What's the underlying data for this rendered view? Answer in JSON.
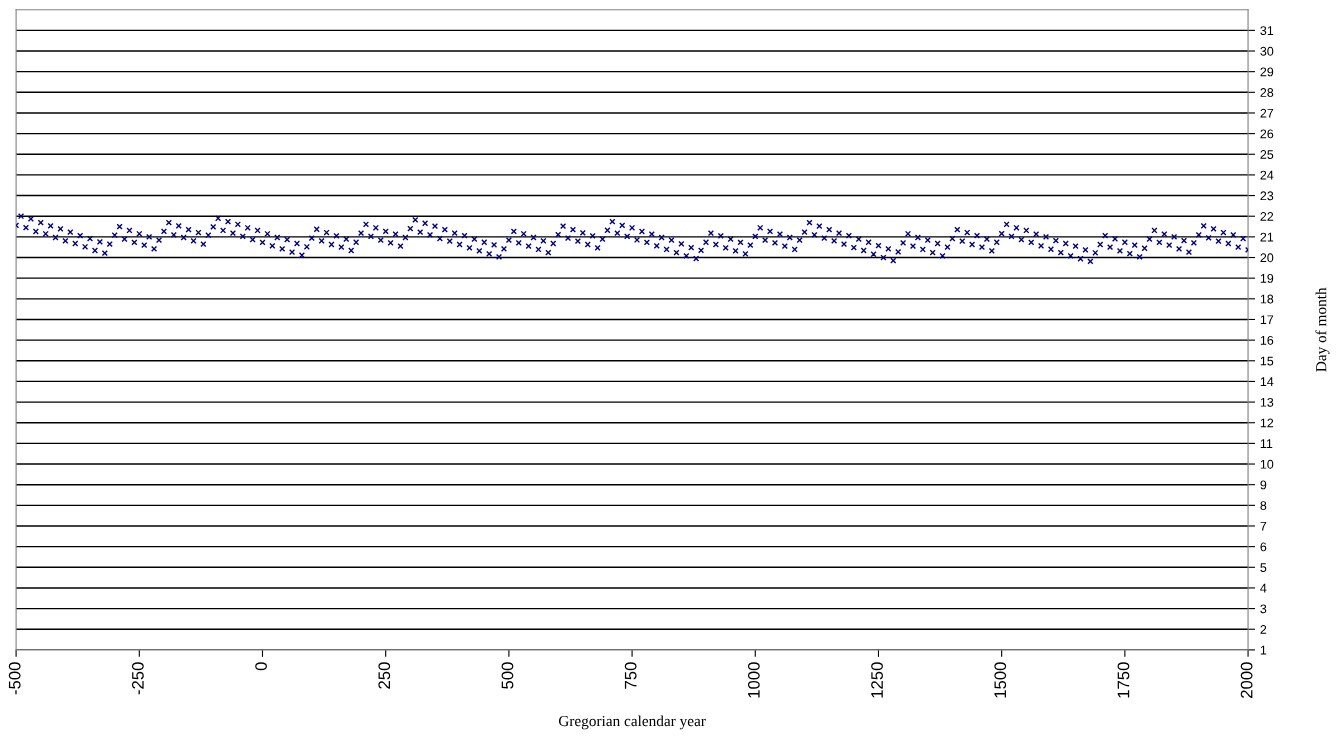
{
  "chart_data": {
    "type": "scatter",
    "xlabel": "Gregorian calendar year",
    "ylabel": "Day of month",
    "xlim": [
      -500,
      2000
    ],
    "xticks": [
      -500,
      -250,
      0,
      250,
      500,
      750,
      1000,
      1250,
      1500,
      1750,
      2000
    ],
    "ylim": [
      1,
      32
    ],
    "yticks": [
      1,
      2,
      3,
      4,
      5,
      6,
      7,
      8,
      9,
      10,
      11,
      12,
      13,
      14,
      15,
      16,
      17,
      18,
      19,
      20,
      21,
      22,
      23,
      24,
      25,
      26,
      27,
      28,
      29,
      30,
      31
    ],
    "grid": "y",
    "marker": "cross",
    "series": [
      {
        "color": "#000080",
        "x": [
          -500,
          -490,
          -480,
          -470,
          -460,
          -450,
          -440,
          -430,
          -420,
          -410,
          -400,
          -390,
          -380,
          -370,
          -360,
          -350,
          -340,
          -330,
          -320,
          -310,
          -300,
          -290,
          -280,
          -270,
          -260,
          -250,
          -240,
          -230,
          -220,
          -210,
          -200,
          -190,
          -180,
          -170,
          -160,
          -150,
          -140,
          -130,
          -120,
          -110,
          -100,
          -90,
          -80,
          -70,
          -60,
          -50,
          -40,
          -30,
          -20,
          -10,
          0,
          10,
          20,
          30,
          40,
          50,
          60,
          70,
          80,
          90,
          100,
          110,
          120,
          130,
          140,
          150,
          160,
          170,
          180,
          190,
          200,
          210,
          220,
          230,
          240,
          250,
          260,
          270,
          280,
          290,
          300,
          310,
          320,
          330,
          340,
          350,
          360,
          370,
          380,
          390,
          400,
          410,
          420,
          430,
          440,
          450,
          460,
          470,
          480,
          490,
          500,
          510,
          520,
          530,
          540,
          550,
          560,
          570,
          580,
          590,
          600,
          610,
          620,
          630,
          640,
          650,
          660,
          670,
          680,
          690,
          700,
          710,
          720,
          730,
          740,
          750,
          760,
          770,
          780,
          790,
          800,
          810,
          820,
          830,
          840,
          850,
          860,
          870,
          880,
          890,
          900,
          910,
          920,
          930,
          940,
          950,
          960,
          970,
          980,
          990,
          1000,
          1010,
          1020,
          1030,
          1040,
          1050,
          1060,
          1070,
          1080,
          1090,
          1100,
          1110,
          1120,
          1130,
          1140,
          1150,
          1160,
          1170,
          1180,
          1190,
          1200,
          1210,
          1220,
          1230,
          1240,
          1250,
          1260,
          1270,
          1280,
          1290,
          1300,
          1310,
          1320,
          1330,
          1340,
          1350,
          1360,
          1370,
          1380,
          1390,
          1400,
          1410,
          1420,
          1430,
          1440,
          1450,
          1460,
          1470,
          1480,
          1490,
          1500,
          1510,
          1520,
          1530,
          1540,
          1550,
          1560,
          1570,
          1580,
          1590,
          1600,
          1610,
          1620,
          1630,
          1640,
          1650,
          1660,
          1670,
          1680,
          1690,
          1700,
          1710,
          1720,
          1730,
          1740,
          1750,
          1760,
          1770,
          1780,
          1790,
          1800,
          1810,
          1820,
          1830,
          1840,
          1850,
          1860,
          1870,
          1880,
          1890,
          1900,
          1910,
          1920,
          1930,
          1940,
          1950,
          1960,
          1970,
          1980,
          1990,
          2000
        ],
        "values": [
          21.56,
          22.0,
          21.45,
          21.87,
          21.26,
          21.69,
          21.15,
          21.53,
          20.97,
          21.39,
          20.81,
          21.23,
          20.68,
          21.06,
          20.52,
          20.92,
          20.34,
          20.76,
          20.21,
          20.65,
          21.08,
          21.5,
          20.89,
          21.31,
          20.73,
          21.15,
          20.6,
          21.0,
          20.42,
          20.84,
          21.27,
          21.69,
          21.1,
          21.53,
          20.97,
          21.35,
          20.81,
          21.21,
          20.65,
          21.08,
          21.48,
          21.9,
          21.31,
          21.74,
          21.18,
          21.61,
          21.02,
          21.44,
          20.87,
          21.31,
          20.73,
          21.15,
          20.56,
          20.97,
          20.42,
          20.87,
          20.26,
          20.68,
          20.11,
          20.52,
          20.94,
          21.37,
          20.81,
          21.21,
          20.63,
          21.05,
          20.5,
          20.89,
          20.34,
          20.74,
          21.18,
          21.61,
          21.02,
          21.44,
          20.84,
          21.27,
          20.71,
          21.13,
          20.55,
          20.97,
          21.4,
          21.82,
          21.23,
          21.66,
          21.1,
          21.52,
          20.92,
          21.35,
          20.79,
          21.18,
          20.63,
          21.06,
          20.47,
          20.89,
          20.32,
          20.74,
          20.18,
          20.61,
          20.03,
          20.42,
          20.84,
          21.27,
          20.71,
          21.15,
          20.55,
          20.97,
          20.39,
          20.81,
          20.24,
          20.68,
          21.11,
          21.52,
          20.94,
          21.35,
          20.79,
          21.19,
          20.63,
          21.05,
          20.47,
          20.89,
          21.32,
          21.74,
          21.18,
          21.56,
          21.02,
          21.44,
          20.85,
          21.26,
          20.73,
          21.13,
          20.56,
          20.97,
          20.39,
          20.84,
          20.24,
          20.66,
          20.08,
          20.48,
          19.95,
          20.35,
          20.74,
          21.18,
          20.63,
          21.05,
          20.47,
          20.89,
          20.32,
          20.73,
          20.18,
          20.6,
          21.02,
          21.44,
          20.84,
          21.27,
          20.71,
          21.13,
          20.55,
          20.97,
          20.39,
          20.84,
          21.23,
          21.69,
          21.1,
          21.52,
          20.94,
          21.35,
          20.81,
          21.18,
          20.65,
          21.06,
          20.48,
          20.89,
          20.34,
          20.74,
          20.16,
          20.58,
          20.0,
          20.42,
          19.85,
          20.27,
          20.71,
          21.15,
          20.55,
          20.97,
          20.39,
          20.84,
          20.24,
          20.68,
          20.08,
          20.5,
          20.92,
          21.35,
          20.79,
          21.21,
          20.63,
          21.06,
          20.5,
          20.89,
          20.32,
          20.74,
          21.16,
          21.61,
          21.02,
          21.44,
          20.87,
          21.31,
          20.73,
          21.13,
          20.56,
          21.0,
          20.4,
          20.82,
          20.24,
          20.68,
          20.08,
          20.55,
          19.94,
          20.37,
          19.81,
          20.23,
          20.63,
          21.06,
          20.5,
          20.9,
          20.32,
          20.74,
          20.19,
          20.6,
          20.03,
          20.45,
          20.89,
          21.31,
          20.73,
          21.13,
          20.6,
          21.0,
          20.42,
          20.82,
          20.26,
          20.71,
          21.1,
          21.53,
          20.95,
          21.39,
          20.79,
          21.21,
          20.68,
          21.1,
          20.5,
          20.92,
          20.37
        ]
      }
    ]
  }
}
